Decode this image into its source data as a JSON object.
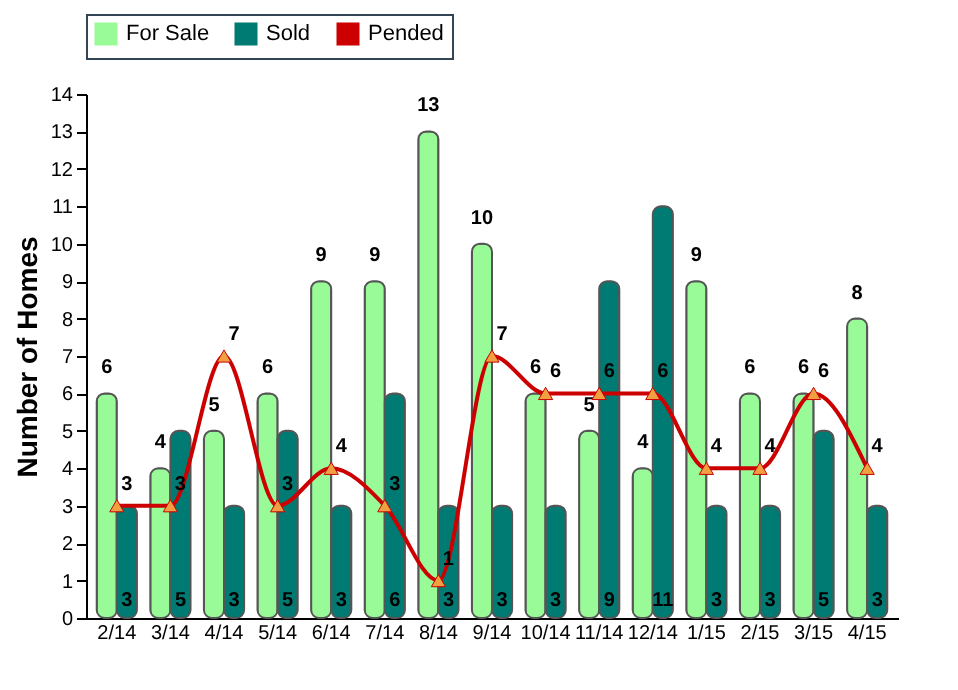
{
  "chart_data": {
    "type": "bar",
    "ylabel": "Number of Homes",
    "categories": [
      "2/14",
      "3/14",
      "4/14",
      "5/14",
      "6/14",
      "7/14",
      "8/14",
      "9/14",
      "10/14",
      "11/14",
      "12/14",
      "1/15",
      "2/15",
      "3/15",
      "4/15"
    ],
    "series": [
      {
        "name": "For Sale",
        "color": "#98fb98",
        "values": [
          6,
          4,
          5,
          6,
          9,
          9,
          13,
          10,
          6,
          5,
          4,
          9,
          6,
          6,
          8
        ]
      },
      {
        "name": "Sold",
        "color": "#007b73",
        "values": [
          3,
          5,
          3,
          5,
          3,
          6,
          3,
          3,
          3,
          9,
          11,
          3,
          3,
          5,
          3
        ]
      },
      {
        "name": "Pended",
        "type": "line",
        "color": "#cc0000",
        "marker": "triangle",
        "values": [
          3,
          3,
          7,
          3,
          4,
          3,
          1,
          7,
          6,
          6,
          6,
          4,
          4,
          6,
          4
        ]
      }
    ],
    "ylim": [
      0,
      14
    ],
    "yticks": [
      0,
      1,
      2,
      3,
      4,
      5,
      6,
      7,
      8,
      9,
      10,
      11,
      12,
      13,
      14
    ],
    "data_labels": true,
    "legend": "top",
    "grid": false
  }
}
